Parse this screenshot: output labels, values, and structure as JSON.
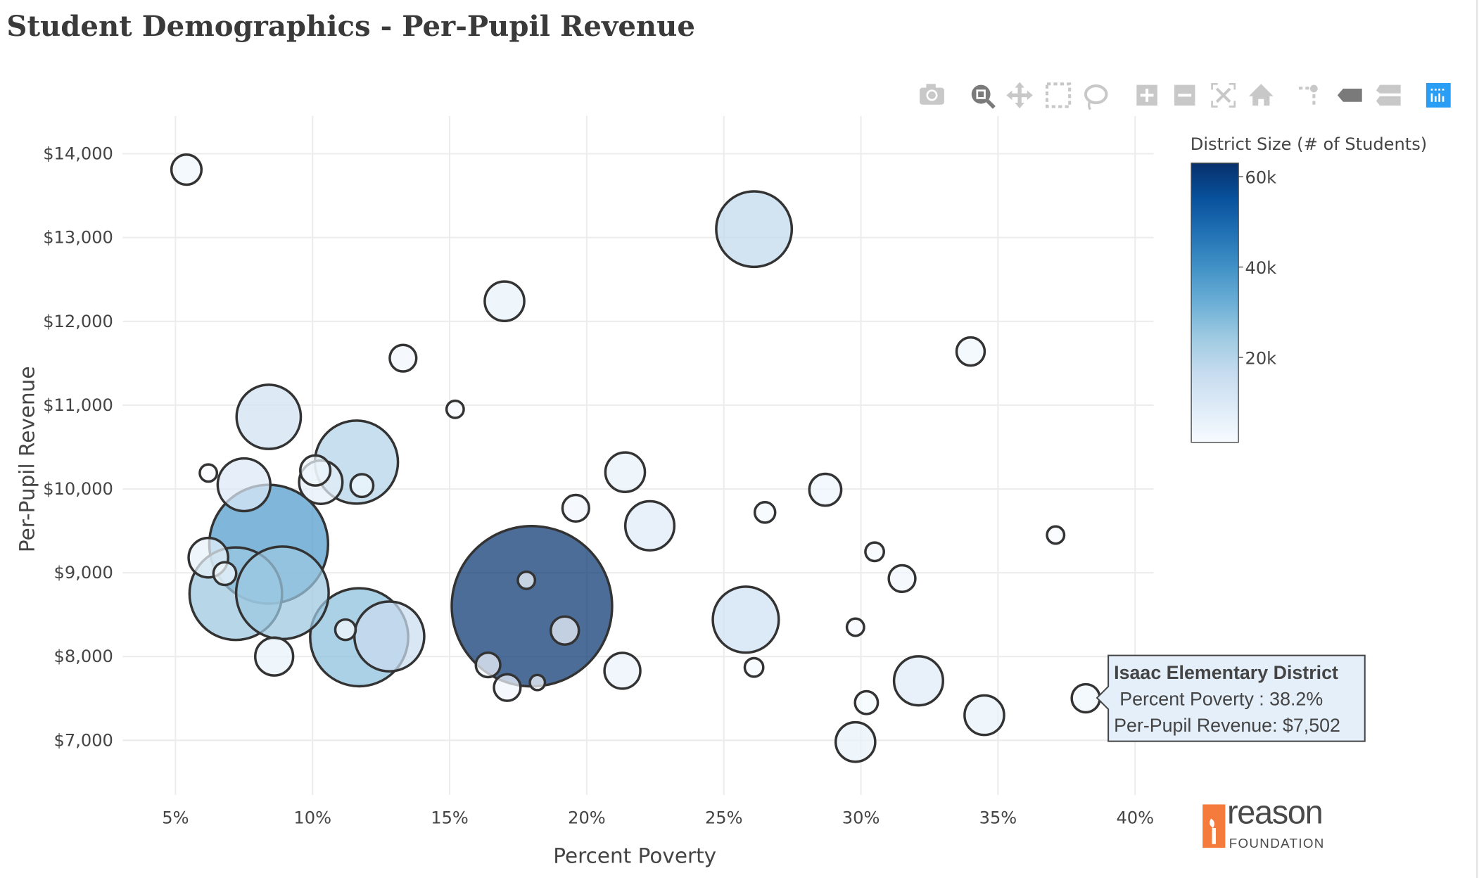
{
  "page": {
    "title": "Student Demographics - Per-Pupil Revenue"
  },
  "toolbar": {
    "buttons": [
      {
        "name": "camera-icon",
        "label": "Download plot as a png"
      },
      {
        "name": "zoom-icon",
        "label": "Zoom",
        "active": true
      },
      {
        "name": "pan-icon",
        "label": "Pan"
      },
      {
        "name": "box-select-icon",
        "label": "Box Select"
      },
      {
        "name": "lasso-select-icon",
        "label": "Lasso Select"
      },
      {
        "name": "zoom-in-icon",
        "label": "Zoom in"
      },
      {
        "name": "zoom-out-icon",
        "label": "Zoom out"
      },
      {
        "name": "autoscale-icon",
        "label": "Autoscale"
      },
      {
        "name": "home-icon",
        "label": "Reset axes"
      },
      {
        "name": "spike-lines-icon",
        "label": "Toggle Spike Lines"
      },
      {
        "name": "hover-closest-icon",
        "label": "Show closest data on hover",
        "active": true
      },
      {
        "name": "hover-compare-icon",
        "label": "Compare data on hover"
      },
      {
        "name": "plotly-logo-icon",
        "label": "Produced with Plotly"
      }
    ],
    "active_color": "#7a7a7a",
    "inactive_color": "#c8c8c8",
    "brand_color": "#2a9df4"
  },
  "chart_data": {
    "type": "scatter",
    "mode": "bubble",
    "title": "Student Demographics - Per-Pupil Revenue",
    "xlabel": "Percent Poverty",
    "ylabel": "Per-Pupil Revenue",
    "xlim": [
      2.9,
      40.6
    ],
    "ylim": [
      6350,
      14450
    ],
    "xticks": [
      5,
      10,
      15,
      20,
      25,
      30,
      35,
      40
    ],
    "xtick_labels": [
      "5%",
      "10%",
      "15%",
      "20%",
      "25%",
      "30%",
      "35%",
      "40%"
    ],
    "yticks": [
      7000,
      8000,
      9000,
      10000,
      11000,
      12000,
      13000,
      14000
    ],
    "ytick_labels": [
      "$7,000",
      "$8,000",
      "$9,000",
      "$10,000",
      "$11,000",
      "$12,000",
      "$13,000",
      "$14,000"
    ],
    "grid": true,
    "colorbar": {
      "title": "District Size (# of Students)",
      "colorscale": "Blues",
      "cmin": 1200,
      "cmax": 63000,
      "ticks": [
        20000,
        40000,
        60000
      ],
      "tick_labels": [
        "20k",
        "40k",
        "60k"
      ],
      "colors": [
        "#f7fbff",
        "#deebf7",
        "#c6dbef",
        "#9ecae1",
        "#6baed6",
        "#4292c6",
        "#2171b5",
        "#08519c",
        "#08306b"
      ]
    },
    "marker_line_color": "#333333",
    "points": [
      {
        "x": 5.4,
        "y": 13810,
        "students": 3800
      },
      {
        "x": 26.1,
        "y": 13100,
        "students": 17700
      },
      {
        "x": 17.0,
        "y": 12240,
        "students": 6000
      },
      {
        "x": 13.3,
        "y": 11560,
        "students": 3100
      },
      {
        "x": 15.2,
        "y": 10950,
        "students": 1500
      },
      {
        "x": 34.0,
        "y": 11640,
        "students": 3400
      },
      {
        "x": 8.4,
        "y": 10860,
        "students": 13500
      },
      {
        "x": 11.6,
        "y": 10320,
        "students": 20700
      },
      {
        "x": 6.2,
        "y": 10190,
        "students": 1500
      },
      {
        "x": 7.5,
        "y": 10050,
        "students": 9700
      },
      {
        "x": 10.3,
        "y": 10080,
        "students": 7000
      },
      {
        "x": 10.1,
        "y": 10220,
        "students": 3800
      },
      {
        "x": 11.8,
        "y": 10040,
        "students": 2400
      },
      {
        "x": 21.4,
        "y": 10200,
        "students": 6000
      },
      {
        "x": 19.6,
        "y": 9770,
        "students": 3100
      },
      {
        "x": 22.3,
        "y": 9560,
        "students": 8600
      },
      {
        "x": 26.5,
        "y": 9720,
        "students": 2000
      },
      {
        "x": 28.7,
        "y": 9990,
        "students": 4200
      },
      {
        "x": 30.5,
        "y": 9250,
        "students": 1700
      },
      {
        "x": 37.1,
        "y": 9450,
        "students": 1500
      },
      {
        "x": 31.5,
        "y": 8930,
        "students": 3100
      },
      {
        "x": 8.4,
        "y": 9340,
        "students": 37600
      },
      {
        "x": 6.2,
        "y": 9180,
        "students": 6000
      },
      {
        "x": 6.8,
        "y": 8990,
        "students": 2400
      },
      {
        "x": 7.2,
        "y": 8750,
        "students": 24800
      },
      {
        "x": 8.9,
        "y": 8760,
        "students": 24800
      },
      {
        "x": 17.8,
        "y": 8910,
        "students": 1500
      },
      {
        "x": 18.0,
        "y": 8600,
        "students": 62000
      },
      {
        "x": 19.2,
        "y": 8310,
        "students": 3400
      },
      {
        "x": 11.7,
        "y": 8230,
        "students": 27300
      },
      {
        "x": 12.8,
        "y": 8240,
        "students": 15500
      },
      {
        "x": 11.2,
        "y": 8320,
        "students": 2000
      },
      {
        "x": 8.6,
        "y": 8000,
        "students": 5600
      },
      {
        "x": 16.4,
        "y": 7900,
        "students": 2700
      },
      {
        "x": 17.1,
        "y": 7630,
        "students": 3100
      },
      {
        "x": 18.2,
        "y": 7690,
        "students": 1200
      },
      {
        "x": 21.3,
        "y": 7830,
        "students": 5100
      },
      {
        "x": 25.8,
        "y": 8440,
        "students": 14100
      },
      {
        "x": 26.1,
        "y": 7870,
        "students": 1700
      },
      {
        "x": 29.8,
        "y": 8350,
        "students": 1500
      },
      {
        "x": 32.1,
        "y": 7710,
        "students": 8600
      },
      {
        "x": 30.2,
        "y": 7450,
        "students": 2400
      },
      {
        "x": 29.8,
        "y": 6980,
        "students": 6000
      },
      {
        "x": 34.5,
        "y": 7300,
        "students": 6000
      },
      {
        "x": 38.2,
        "y": 7502,
        "students": 3400,
        "name": "Isaac Elementary District"
      }
    ]
  },
  "tooltip": {
    "title": "Isaac Elementary District",
    "line1": "Percent Poverty : 38.2%",
    "line2": "Per-Pupil Revenue: $7,502",
    "background": "#e4eff9"
  },
  "logo": {
    "word": "reason",
    "sub": "FOUNDATION",
    "color": "#f47b3c"
  }
}
